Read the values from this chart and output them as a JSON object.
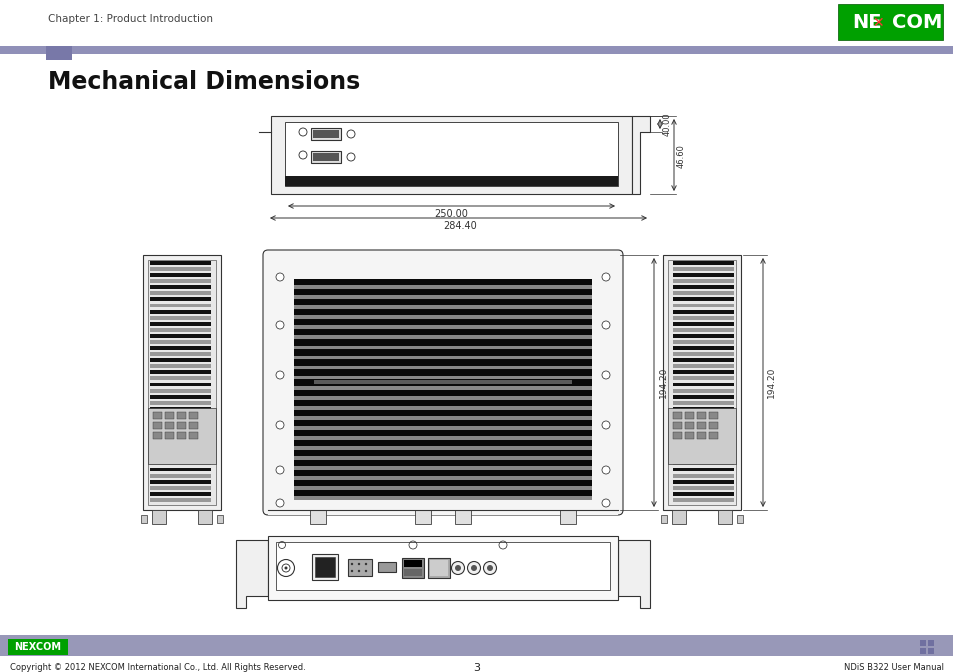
{
  "page_title": "Chapter 1: Product Introduction",
  "section_title": "Mechanical Dimensions",
  "footer_left": "Copyright © 2012 NEXCOM International Co., Ltd. All Rights Reserved.",
  "footer_center": "3",
  "footer_right": "NDiS B322 User Manual",
  "header_line_color": "#9090b8",
  "header_rect_color": "#7878a8",
  "footer_bg_color": "#9898b8",
  "nexcom_green": "#00a000",
  "dim_250": "250.00",
  "dim_284": "284.40",
  "dim_40": "40.00",
  "dim_46": "46.60",
  "dim_194": "194.20",
  "title_fontsize": 17,
  "bg_color": "#ffffff",
  "drawing_color": "#333333",
  "fin_dark": "#111111",
  "fin_mid": "#888888",
  "fin_light": "#cccccc"
}
